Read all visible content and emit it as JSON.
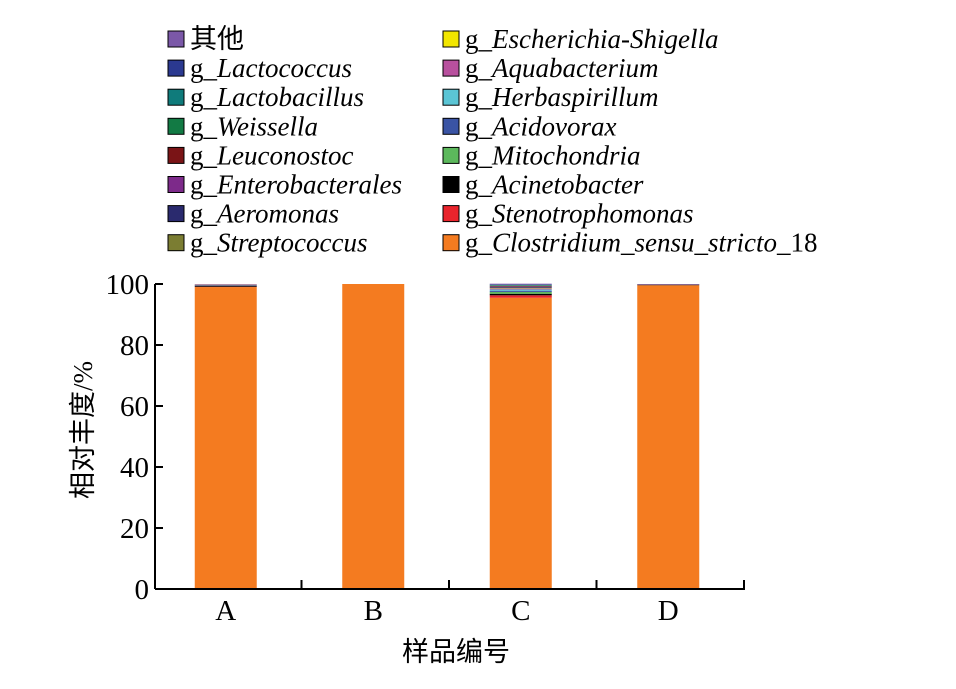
{
  "chart_data": {
    "type": "bar",
    "stacked": true,
    "title": "",
    "xlabel": "样品编号",
    "ylabel": "相对丰度/%",
    "ylim": [
      0,
      100
    ],
    "yticks": [
      0,
      20,
      40,
      60,
      80,
      100
    ],
    "categories": [
      "A",
      "B",
      "C",
      "D"
    ],
    "legend_position": "top",
    "legend": [
      {
        "prefix": "",
        "italic": "",
        "suffix": "其他",
        "color": "#7b58a8"
      },
      {
        "prefix": "g_",
        "italic": "Escherichia-Shigella",
        "suffix": "",
        "color": "#f2e600"
      },
      {
        "prefix": "g_",
        "italic": "Lactococcus",
        "suffix": "",
        "color": "#2b3990"
      },
      {
        "prefix": "g_",
        "italic": "Aquabacterium",
        "suffix": "",
        "color": "#b8509e"
      },
      {
        "prefix": "g_",
        "italic": "Lactobacillus",
        "suffix": "",
        "color": "#0f7b7b"
      },
      {
        "prefix": "g_",
        "italic": "Herbaspirillum",
        "suffix": "",
        "color": "#5bc5d5"
      },
      {
        "prefix": "g_",
        "italic": "Weissella",
        "suffix": "",
        "color": "#127a44"
      },
      {
        "prefix": "g_",
        "italic": "Acidovorax",
        "suffix": "",
        "color": "#3a54a4"
      },
      {
        "prefix": "g_",
        "italic": "Leuconostoc",
        "suffix": "",
        "color": "#7a1416"
      },
      {
        "prefix": "g_",
        "italic": "Mitochondria",
        "suffix": "",
        "color": "#5cb85c"
      },
      {
        "prefix": "g_",
        "italic": "Enterobacterales",
        "suffix": "",
        "color": "#7d2a8a"
      },
      {
        "prefix": "g_",
        "italic": "Acinetobacter",
        "suffix": "",
        "color": "#000000"
      },
      {
        "prefix": "g_",
        "italic": "Aeromonas",
        "suffix": "",
        "color": "#2a2a6e"
      },
      {
        "prefix": "g_",
        "italic": "Stenotrophomonas",
        "suffix": "",
        "color": "#e9242c"
      },
      {
        "prefix": "g_",
        "italic": "Streptococcus",
        "suffix": "",
        "color": "#7b7d32"
      },
      {
        "prefix": "g_",
        "italic": "Clostridium_sensu_stricto",
        "suffix": "_18",
        "color": "#f47b20"
      }
    ],
    "series": [
      {
        "name": "g_Clostridium_sensu_stricto_18",
        "color": "#f47b20",
        "values": [
          99.0,
          100.0,
          95.5,
          99.6
        ]
      },
      {
        "name": "g_Stenotrophomonas",
        "color": "#e9242c",
        "values": [
          0.1,
          0,
          0.8,
          0
        ]
      },
      {
        "name": "g_Acinetobacter",
        "color": "#000000",
        "values": [
          0.3,
          0,
          0.5,
          0.1
        ]
      },
      {
        "name": "g_Mitochondria",
        "color": "#5cb85c",
        "values": [
          0,
          0,
          0.6,
          0
        ]
      },
      {
        "name": "g_Acidovorax",
        "color": "#3a54a4",
        "values": [
          0.1,
          0,
          0.4,
          0
        ]
      },
      {
        "name": "g_Herbaspirillum",
        "color": "#5bc5d5",
        "values": [
          0,
          0,
          0.4,
          0
        ]
      },
      {
        "name": "g_Aquabacterium",
        "color": "#b8509e",
        "values": [
          0,
          0,
          0.3,
          0
        ]
      },
      {
        "name": "g_Escherichia-Shigella",
        "color": "#f2e600",
        "values": [
          0,
          0,
          0.1,
          0
        ]
      },
      {
        "name": "g_Streptococcus",
        "color": "#7b7d32",
        "values": [
          0.1,
          0,
          0.2,
          0
        ]
      },
      {
        "name": "g_Aeromonas",
        "color": "#2a2a6e",
        "values": [
          0.1,
          0,
          0.3,
          0.1
        ]
      },
      {
        "name": "g_Enterobacterales",
        "color": "#7d2a8a",
        "values": [
          0,
          0,
          0.1,
          0
        ]
      },
      {
        "name": "g_Leuconostoc",
        "color": "#7a1416",
        "values": [
          0.1,
          0,
          0.2,
          0.1
        ]
      },
      {
        "name": "g_Weissella",
        "color": "#127a44",
        "values": [
          0,
          0,
          0.2,
          0
        ]
      },
      {
        "name": "g_Lactobacillus",
        "color": "#0f7b7b",
        "values": [
          0,
          0,
          0.1,
          0
        ]
      },
      {
        "name": "g_Lactococcus",
        "color": "#2b3990",
        "values": [
          0,
          0,
          0.2,
          0
        ]
      },
      {
        "name": "其他",
        "color": "#7b58a8",
        "values": [
          0.1,
          0,
          0.2,
          0.1
        ]
      }
    ]
  }
}
